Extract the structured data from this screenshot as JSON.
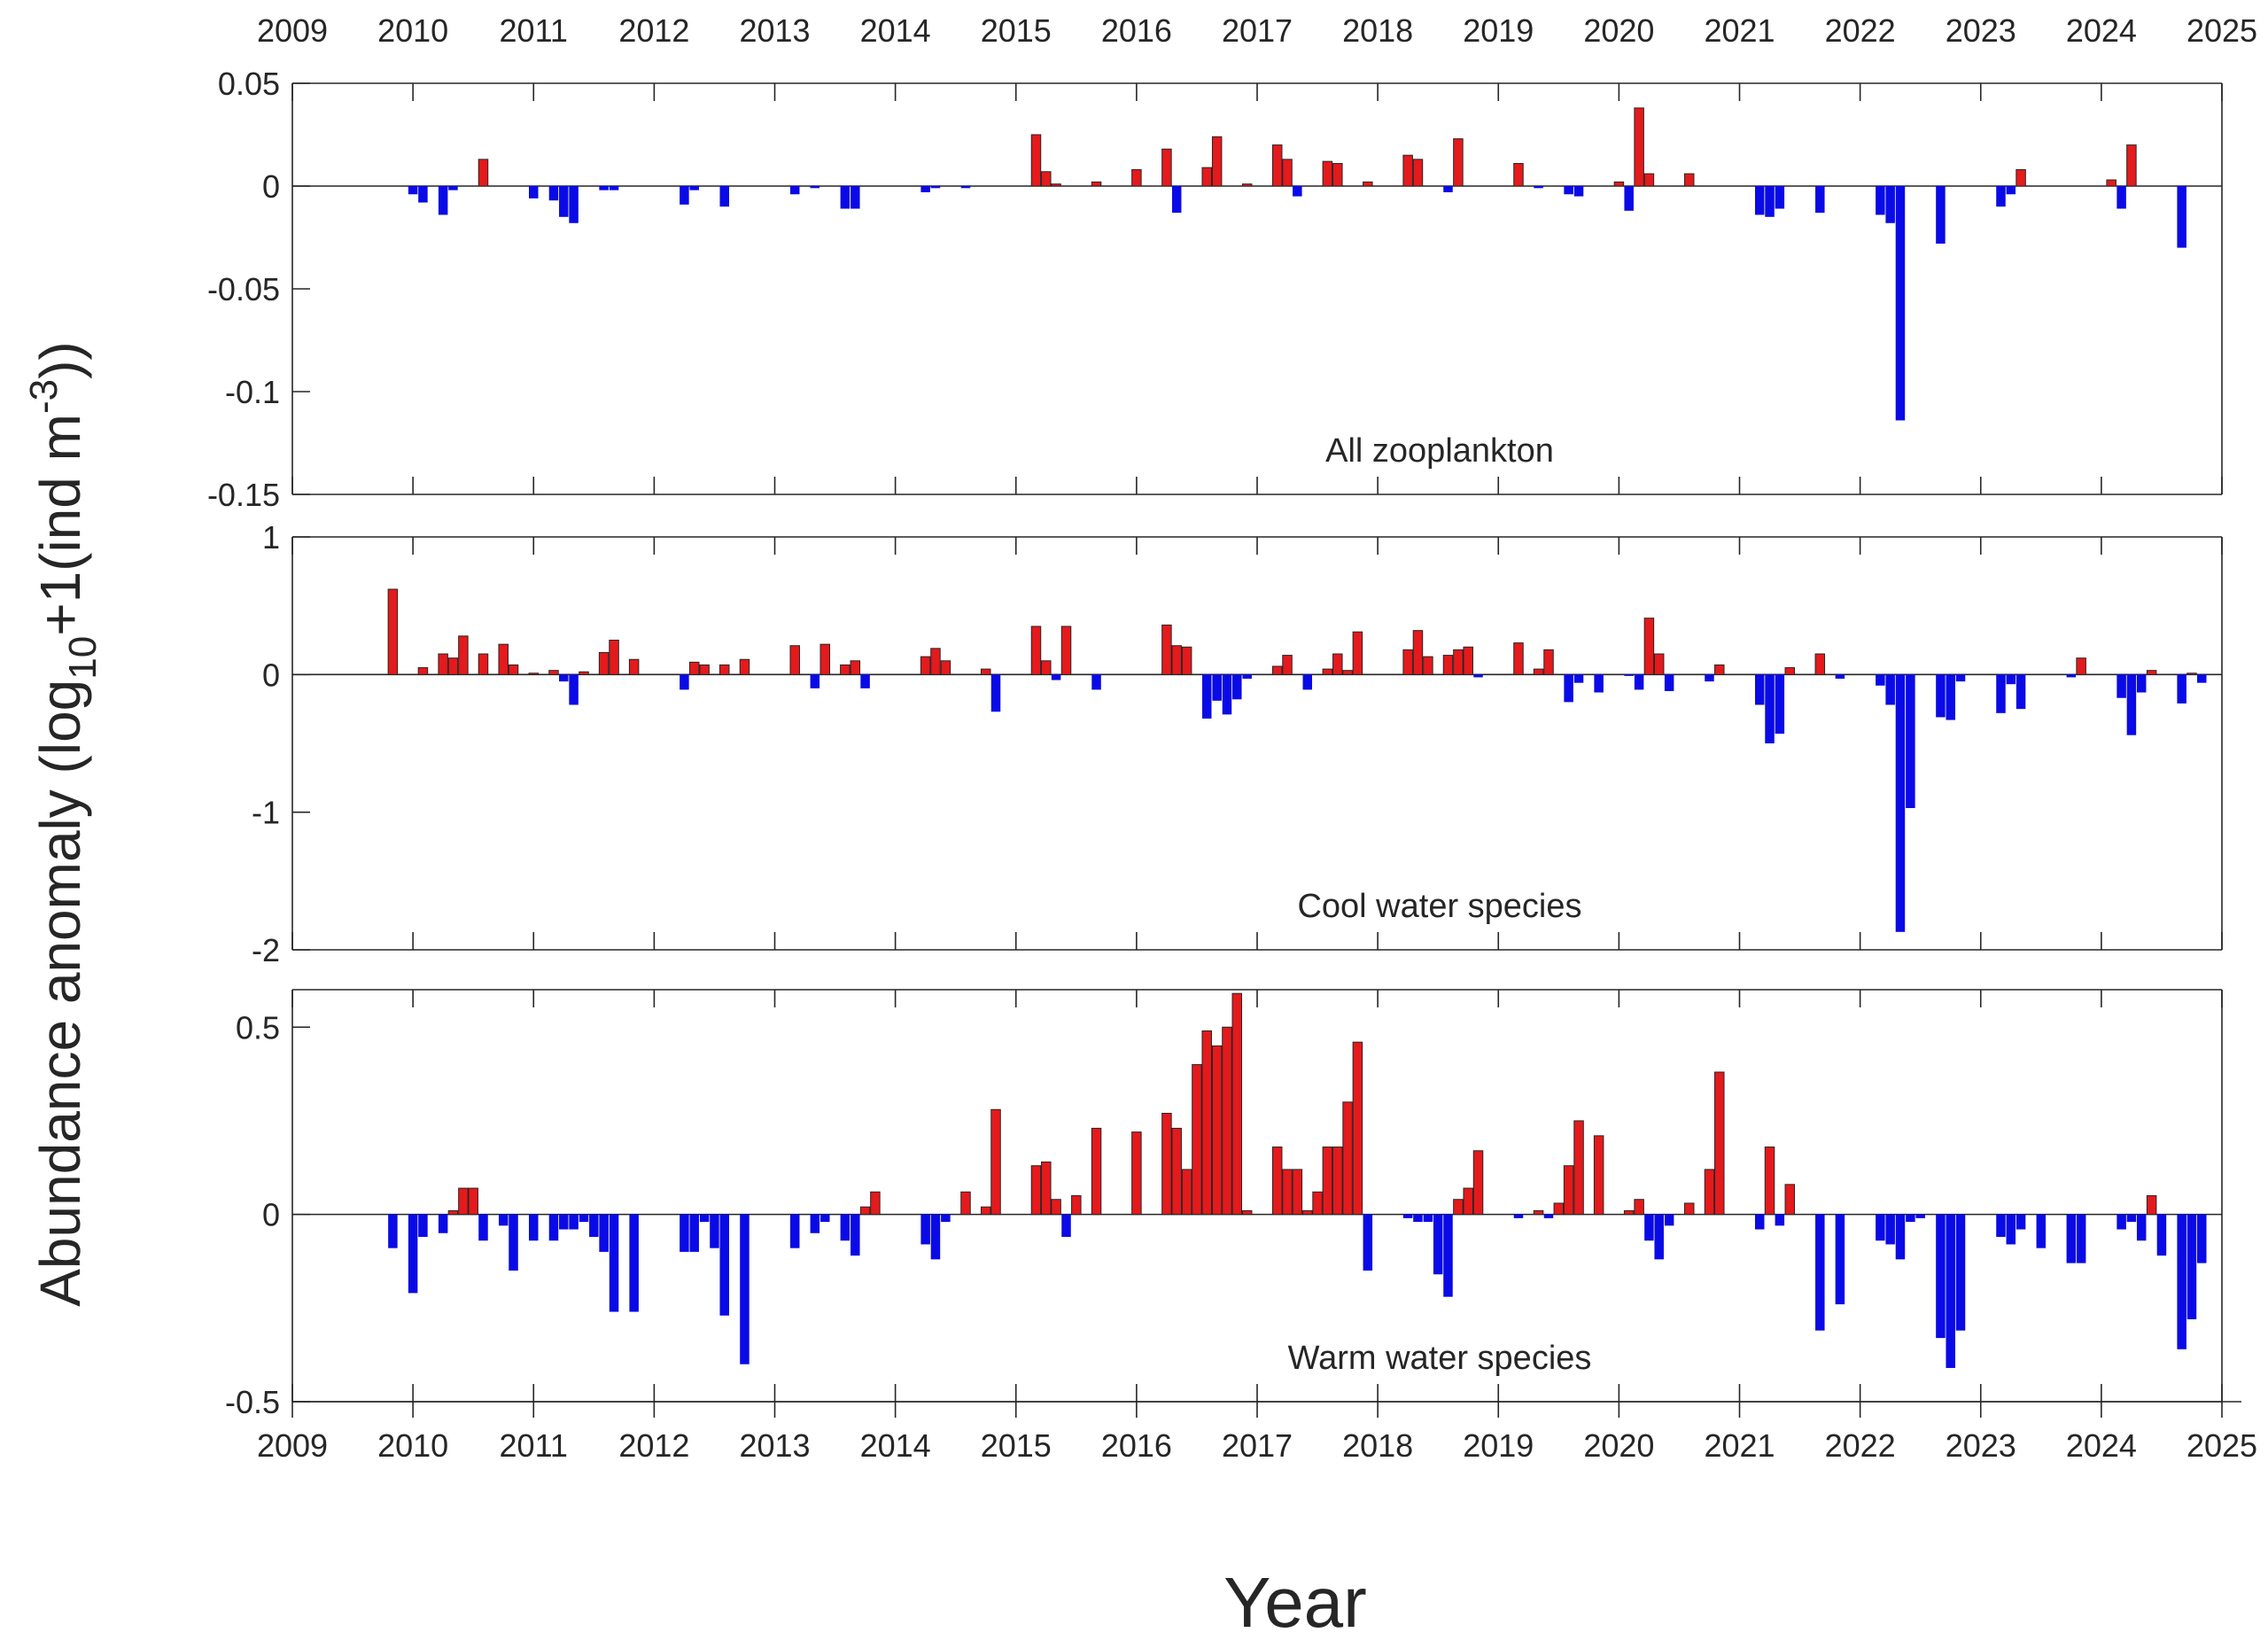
{
  "figure": {
    "ylabel_main": "Abundance anomaly (log",
    "ylabel_sub": "10",
    "ylabel_mid": "+1(ind m",
    "ylabel_sup": "-3",
    "ylabel_end": "))",
    "xlabel": "Year"
  },
  "colors": {
    "positive": "#e41a1c",
    "negative": "#0a0ae6",
    "axis": "#262626"
  },
  "chart_data": [
    {
      "type": "bar",
      "annotation": "All zooplankton",
      "xlim": [
        2009,
        2025
      ],
      "ylim": [
        -0.15,
        0.05
      ],
      "yticks": [
        0.05,
        0,
        -0.05,
        -0.1,
        -0.15
      ],
      "ytick_labels": [
        "0.05",
        "0",
        "-0.05",
        "-0.1",
        "-0.15"
      ],
      "x": [
        2010.0,
        2010.083,
        2010.25,
        2010.333,
        2010.583,
        2011.0,
        2011.167,
        2011.25,
        2011.333,
        2011.583,
        2011.667,
        2012.25,
        2012.333,
        2012.583,
        2013.167,
        2013.333,
        2013.583,
        2013.667,
        2014.25,
        2014.333,
        2014.583,
        2015.167,
        2015.25,
        2015.333,
        2015.667,
        2016.0,
        2016.25,
        2016.333,
        2016.583,
        2016.667,
        2016.917,
        2017.167,
        2017.25,
        2017.333,
        2017.583,
        2017.667,
        2017.917,
        2018.25,
        2018.333,
        2018.583,
        2018.667,
        2019.167,
        2019.333,
        2019.583,
        2019.667,
        2020.0,
        2020.083,
        2020.167,
        2020.25,
        2020.583,
        2021.167,
        2021.25,
        2021.333,
        2021.667,
        2022.167,
        2022.25,
        2022.333,
        2022.667,
        2023.167,
        2023.25,
        2023.333,
        2024.083,
        2024.167,
        2024.25,
        2024.667
      ],
      "values": [
        -0.004,
        -0.008,
        -0.014,
        -0.002,
        0.013,
        -0.006,
        -0.007,
        -0.015,
        -0.018,
        -0.002,
        -0.002,
        -0.009,
        -0.002,
        -0.01,
        -0.004,
        -0.001,
        -0.011,
        -0.011,
        -0.003,
        -0.001,
        -0.001,
        0.025,
        0.007,
        0.001,
        0.002,
        0.008,
        0.018,
        -0.013,
        0.009,
        0.024,
        0.001,
        0.02,
        0.013,
        -0.005,
        0.012,
        0.011,
        0.002,
        0.015,
        0.013,
        -0.003,
        0.023,
        0.011,
        -0.001,
        -0.004,
        -0.005,
        0.002,
        -0.012,
        0.038,
        0.006,
        0.006,
        -0.014,
        -0.015,
        -0.011,
        -0.013,
        -0.014,
        -0.018,
        -0.114,
        -0.028,
        -0.01,
        -0.004,
        0.008,
        0.003,
        -0.011,
        0.02,
        -0.03
      ]
    },
    {
      "type": "bar",
      "annotation": "Cool water species",
      "xlim": [
        2009,
        2025
      ],
      "ylim": [
        -2,
        1
      ],
      "yticks": [
        1,
        0,
        -1,
        -2
      ],
      "ytick_labels": [
        "1",
        "0",
        "-1",
        "-2"
      ],
      "x": [
        2009.833,
        2010.083,
        2010.25,
        2010.333,
        2010.417,
        2010.583,
        2010.75,
        2010.833,
        2011.0,
        2011.167,
        2011.25,
        2011.333,
        2011.417,
        2011.583,
        2011.667,
        2011.833,
        2012.25,
        2012.333,
        2012.417,
        2012.583,
        2012.75,
        2013.167,
        2013.333,
        2013.417,
        2013.583,
        2013.667,
        2013.75,
        2013.833,
        2014.25,
        2014.333,
        2014.417,
        2014.583,
        2014.75,
        2014.833,
        2015.167,
        2015.25,
        2015.333,
        2015.417,
        2015.667,
        2016.0,
        2016.25,
        2016.333,
        2016.417,
        2016.583,
        2016.667,
        2016.75,
        2016.833,
        2016.917,
        2017.167,
        2017.25,
        2017.417,
        2017.583,
        2017.667,
        2017.75,
        2017.833,
        2017.917,
        2018.25,
        2018.333,
        2018.417,
        2018.583,
        2018.667,
        2018.75,
        2018.833,
        2019.167,
        2019.333,
        2019.417,
        2019.583,
        2019.667,
        2019.833,
        2020.083,
        2020.167,
        2020.25,
        2020.333,
        2020.417,
        2020.75,
        2020.833,
        2021.167,
        2021.25,
        2021.333,
        2021.417,
        2021.667,
        2021.833,
        2022.167,
        2022.25,
        2022.333,
        2022.417,
        2022.5,
        2022.667,
        2022.75,
        2022.833,
        2023.167,
        2023.25,
        2023.333,
        2023.75,
        2023.833,
        2024.167,
        2024.25,
        2024.333,
        2024.417,
        2024.667,
        2024.75,
        2024.833
      ],
      "values": [
        0.62,
        0.05,
        0.15,
        0.12,
        0.28,
        0.15,
        0.22,
        0.07,
        0.01,
        0.03,
        -0.05,
        -0.22,
        0.02,
        0.16,
        0.25,
        0.11,
        -0.11,
        0.09,
        0.07,
        0.07,
        0.11,
        0.21,
        -0.1,
        0.22,
        0.07,
        0.1,
        -0.1,
        0.0,
        0.13,
        0.19,
        0.1,
        0.0,
        0.04,
        -0.27,
        0.35,
        0.1,
        -0.04,
        0.35,
        -0.11,
        0.0,
        0.36,
        0.21,
        0.2,
        -0.32,
        -0.19,
        -0.29,
        -0.18,
        -0.03,
        0.06,
        0.14,
        -0.11,
        0.04,
        0.15,
        0.03,
        0.31,
        0.0,
        0.18,
        0.32,
        0.13,
        0.14,
        0.18,
        0.2,
        -0.02,
        0.23,
        0.04,
        0.18,
        -0.2,
        -0.06,
        -0.13,
        -0.01,
        -0.11,
        0.41,
        0.15,
        -0.12,
        -0.05,
        0.07,
        -0.22,
        -0.5,
        -0.43,
        0.05,
        0.15,
        -0.03,
        -0.08,
        -0.22,
        -1.87,
        -0.97,
        0.0,
        -0.31,
        -0.33,
        -0.05,
        -0.28,
        -0.07,
        -0.25,
        -0.02,
        0.12,
        -0.17,
        -0.44,
        -0.13,
        0.03,
        -0.21,
        0.01,
        -0.06
      ]
    },
    {
      "type": "bar",
      "annotation": "Warm water species",
      "xlim": [
        2009,
        2025
      ],
      "ylim": [
        -0.5,
        0.6
      ],
      "yticks": [
        0.5,
        0,
        -0.5
      ],
      "ytick_labels": [
        "0.5",
        "0",
        "-0.5"
      ],
      "x": [
        2009.833,
        2010.0,
        2010.083,
        2010.25,
        2010.333,
        2010.417,
        2010.5,
        2010.583,
        2010.75,
        2010.833,
        2011.0,
        2011.167,
        2011.25,
        2011.333,
        2011.417,
        2011.5,
        2011.583,
        2011.667,
        2011.833,
        2012.25,
        2012.333,
        2012.417,
        2012.5,
        2012.583,
        2012.75,
        2013.167,
        2013.333,
        2013.417,
        2013.583,
        2013.667,
        2013.75,
        2013.833,
        2014.25,
        2014.333,
        2014.417,
        2014.583,
        2014.75,
        2014.833,
        2015.167,
        2015.25,
        2015.333,
        2015.417,
        2015.5,
        2015.667,
        2016.0,
        2016.25,
        2016.333,
        2016.417,
        2016.5,
        2016.583,
        2016.667,
        2016.75,
        2016.833,
        2016.917,
        2017.167,
        2017.25,
        2017.333,
        2017.417,
        2017.5,
        2017.583,
        2017.667,
        2017.75,
        2017.833,
        2017.917,
        2018.25,
        2018.333,
        2018.417,
        2018.5,
        2018.583,
        2018.667,
        2018.75,
        2018.833,
        2019.167,
        2019.333,
        2019.417,
        2019.5,
        2019.583,
        2019.667,
        2019.833,
        2020.083,
        2020.167,
        2020.25,
        2020.333,
        2020.417,
        2020.583,
        2020.75,
        2020.833,
        2021.167,
        2021.25,
        2021.333,
        2021.417,
        2021.667,
        2021.833,
        2022.167,
        2022.25,
        2022.333,
        2022.417,
        2022.5,
        2022.667,
        2022.75,
        2022.833,
        2023.167,
        2023.25,
        2023.333,
        2023.5,
        2023.75,
        2023.833,
        2024.167,
        2024.25,
        2024.333,
        2024.417,
        2024.5,
        2024.667,
        2024.75,
        2024.833
      ],
      "values": [
        -0.09,
        -0.21,
        -0.06,
        -0.05,
        0.01,
        0.07,
        0.07,
        -0.07,
        -0.03,
        -0.15,
        -0.07,
        -0.07,
        -0.04,
        -0.04,
        -0.02,
        -0.06,
        -0.1,
        -0.26,
        -0.26,
        -0.1,
        -0.1,
        -0.02,
        -0.09,
        -0.27,
        -0.4,
        -0.09,
        -0.05,
        -0.02,
        -0.07,
        -0.11,
        0.02,
        0.06,
        -0.08,
        -0.12,
        -0.02,
        0.06,
        0.02,
        0.28,
        0.13,
        0.14,
        0.04,
        -0.06,
        0.05,
        0.23,
        0.22,
        0.27,
        0.23,
        0.12,
        0.4,
        0.49,
        0.45,
        0.5,
        0.59,
        0.01,
        0.18,
        0.12,
        0.12,
        0.01,
        0.06,
        0.18,
        0.18,
        0.3,
        0.46,
        -0.15,
        -0.01,
        -0.02,
        -0.02,
        -0.16,
        -0.22,
        0.04,
        0.07,
        0.17,
        -0.01,
        0.01,
        -0.01,
        0.03,
        0.13,
        0.25,
        0.21,
        0.01,
        0.04,
        -0.07,
        -0.12,
        -0.03,
        0.03,
        0.12,
        0.38,
        -0.04,
        0.18,
        -0.03,
        0.08,
        -0.31,
        -0.24,
        -0.07,
        -0.08,
        -0.12,
        -0.02,
        -0.01,
        -0.33,
        -0.41,
        -0.31,
        -0.06,
        -0.08,
        -0.04,
        -0.09,
        -0.13,
        -0.13,
        -0.04,
        -0.02,
        -0.07,
        0.05,
        -0.11,
        -0.36,
        -0.28,
        -0.13
      ]
    }
  ],
  "xaxis": {
    "ticks": [
      2009,
      2010,
      2011,
      2012,
      2013,
      2014,
      2015,
      2016,
      2017,
      2018,
      2019,
      2020,
      2021,
      2022,
      2023,
      2024,
      2025
    ],
    "tick_labels": [
      "2009",
      "2010",
      "2011",
      "2012",
      "2013",
      "2014",
      "2015",
      "2016",
      "2017",
      "2018",
      "2019",
      "2020",
      "2021",
      "2022",
      "2023",
      "2024",
      "2025"
    ]
  }
}
